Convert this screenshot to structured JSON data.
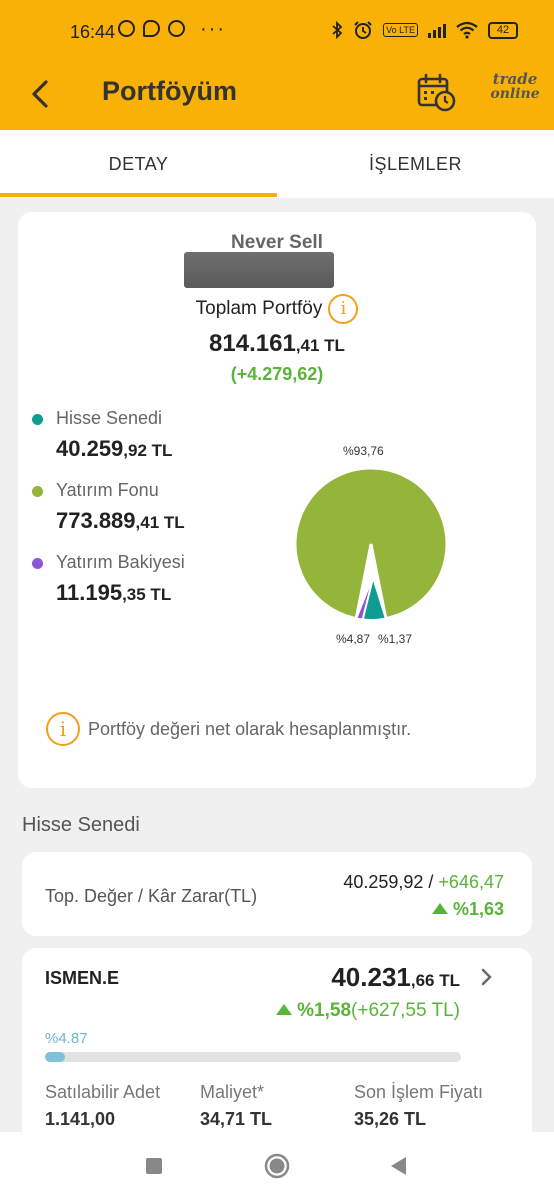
{
  "status_bar": {
    "time": "16:44",
    "overflow": "···",
    "network_badge": "Vo LTE",
    "battery": "42",
    "icons": [
      "whatsapp-icon",
      "chat-bubble-icon",
      "media-icon",
      "bluetooth-icon",
      "alarm-icon",
      "signal-icon",
      "wifi-icon"
    ]
  },
  "app_bar": {
    "title": "Portföyüm",
    "logo_line1": "trade",
    "logo_line2": "online",
    "accent": "#f8b104"
  },
  "tabs": [
    {
      "label": "DETAY",
      "active": true
    },
    {
      "label": "İŞLEMLER",
      "active": false
    }
  ],
  "summary": {
    "account_name": "Never Sell",
    "total_label": "Toplam Portföy",
    "total_main": "814.161",
    "total_decimal": ",41 TL",
    "total_change": "(+4.279,62)",
    "note": "Portföy değeri net olarak hesaplanmıştır."
  },
  "legend": [
    {
      "label": "Hisse Senedi",
      "main": "40.259",
      "decimal": ",92 TL",
      "color": "#0e9c94"
    },
    {
      "label": "Yatırım Fonu",
      "main": "773.889",
      "decimal": ",41 TL",
      "color": "#94b53a"
    },
    {
      "label": "Yatırım Bakiyesi",
      "main": "11.195",
      "decimal": ",35 TL",
      "color": "#8e55d6"
    }
  ],
  "chart_data": {
    "type": "pie",
    "slices": [
      {
        "name": "Yatırım Fonu",
        "value": 93.76,
        "label": "%93,76",
        "color": "#94b53a"
      },
      {
        "name": "Hisse Senedi",
        "value": 4.87,
        "label": "%4,87",
        "color": "#0e9c94"
      },
      {
        "name": "Yatırım Bakiyesi",
        "value": 1.37,
        "label": "%1,37",
        "color": "#8e55d6"
      }
    ]
  },
  "section": {
    "title": "Hisse Senedi",
    "summary_label": "Top. Değer / Kâr Zarar(TL)",
    "summary_value": "40.259,92",
    "summary_separator": " / ",
    "summary_pl": "+646,47",
    "summary_pct": "%1,63"
  },
  "holding": {
    "symbol": "ISMEN.E",
    "value_main": "40.231",
    "value_decimal": ",66 TL",
    "change_pct": "%1,58",
    "change_amount": "(+627,55 TL)",
    "weight_label": "%4.87",
    "weight_fraction": 0.0487,
    "columns": [
      {
        "header": "Satılabilir Adet",
        "value": "1.141,00"
      },
      {
        "header": "Maliyet*",
        "value": "34,71 TL"
      },
      {
        "header": "Son İşlem Fiyatı",
        "value": "35,26 TL"
      }
    ]
  },
  "nav": [
    "recents-square-icon",
    "home-circle-icon",
    "back-triangle-icon"
  ]
}
